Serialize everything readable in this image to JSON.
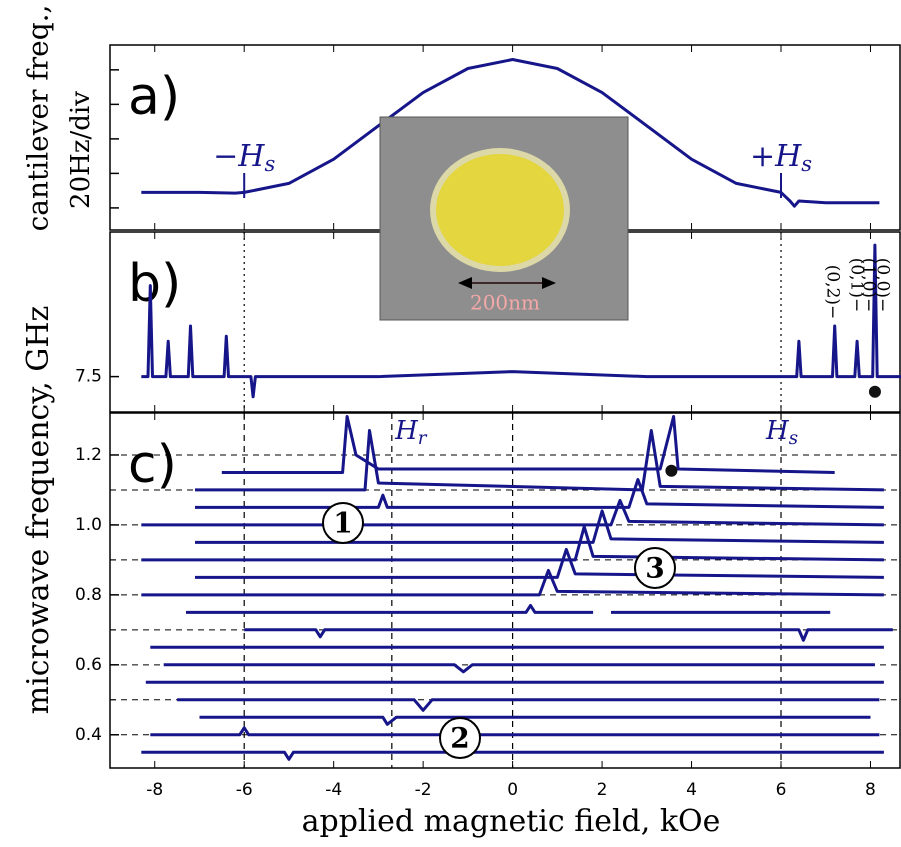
{
  "chart_data": [
    {
      "type": "line",
      "panel_label": "a)",
      "ylabel": [
        "cantilever freq.,",
        "20Hz/div"
      ],
      "xlim": [
        -9,
        8.66
      ],
      "ylim": [
        -0.64,
        4.72
      ],
      "yticks": [
        0,
        1,
        2,
        3,
        4
      ],
      "color": "#16168a",
      "annotations": [
        {
          "text": "−H",
          "sub": "s"
        },
        {
          "text": "+H",
          "sub": "s"
        }
      ],
      "annotation_x": [
        -6,
        6
      ],
      "series": [
        {
          "x": [
            -8.3,
            -7,
            -6.2,
            -6,
            -5,
            -4,
            -3,
            -2,
            -1,
            0,
            1,
            2,
            3,
            4,
            5,
            6,
            6.2,
            6.3,
            6.4,
            7,
            8.2
          ],
          "values": [
            0.45,
            0.45,
            0.43,
            0.45,
            0.71,
            1.41,
            2.38,
            3.34,
            4.04,
            4.3,
            4.04,
            3.34,
            2.38,
            1.41,
            0.71,
            0.45,
            0.2,
            0.05,
            0.2,
            0.15,
            0.15
          ]
        }
      ],
      "inset_label": "200nm"
    },
    {
      "type": "line",
      "panel_label": "b)",
      "xlim": [
        -9,
        8.66
      ],
      "ylim": [
        7.325,
        8.215
      ],
      "yticks": [
        7.5
      ],
      "color": "#16168a",
      "vlines": [
        -6,
        6
      ],
      "mode_labels": [
        "(0,0)−",
        "(1,0)−",
        "(0,1)−",
        "(0,2)−"
      ],
      "series": [
        {
          "x": [
            -8.3,
            -8.15,
            -8.1,
            -8.05,
            -7.75,
            -7.7,
            -7.65,
            -7.25,
            -7.2,
            -7.15,
            -6.45,
            -6.4,
            -6.35,
            -5.85,
            -5.8,
            -5.75,
            -3,
            0,
            3,
            6.35,
            6.4,
            6.45,
            7.15,
            7.2,
            7.25,
            7.65,
            7.7,
            7.75,
            8.05,
            8.1,
            8.15,
            8.7
          ],
          "values": [
            7.5,
            7.5,
            7.95,
            7.5,
            7.5,
            7.675,
            7.5,
            7.5,
            7.75,
            7.5,
            7.5,
            7.7,
            7.5,
            7.5,
            7.4,
            7.5,
            7.5,
            7.525,
            7.5,
            7.5,
            7.675,
            7.5,
            7.5,
            7.75,
            7.5,
            7.5,
            7.675,
            7.5,
            7.5,
            8.15,
            7.5,
            7.5
          ]
        }
      ],
      "markers": {
        "x": [
          8.1
        ],
        "values": [
          7.425
        ]
      }
    },
    {
      "type": "line",
      "panel_label": "c)",
      "ylabel": "microwave frequency, GHz",
      "xlabel": "applied magnetic field, kOe",
      "xlim": [
        -9,
        8.66
      ],
      "ylim": [
        0.305,
        1.32
      ],
      "color": "#16168a",
      "xticks": [
        -8,
        -6,
        -4,
        -2,
        0,
        2,
        4,
        6,
        8
      ],
      "yticks": [
        0.4,
        0.6,
        0.8,
        {
          "value": 1,
          "label": "1.0"
        },
        1.2
      ],
      "yminor": [
        0.5,
        0.7,
        0.9,
        1.1
      ],
      "vlines": [
        -6,
        -2.7,
        0,
        6
      ],
      "annotations": [
        {
          "text": "H",
          "sub": "r"
        },
        {
          "text": "H",
          "sub": "s"
        }
      ],
      "annotation_x": [
        -2.5,
        5.8
      ],
      "circled": [
        "1",
        "2",
        "3"
      ],
      "series": [
        {
          "x": [
            -8.3,
            -5.1,
            -5,
            -4.9,
            8.3
          ],
          "values": [
            0.35,
            0.35,
            0.33,
            0.35,
            0.35
          ]
        },
        {
          "x": [
            -8.1,
            -6.1,
            -6,
            -5.9,
            8.2
          ],
          "values": [
            0.4,
            0.4,
            0.42,
            0.4,
            0.4
          ]
        },
        {
          "x": [
            -7.0,
            -2.9,
            -2.8,
            -2.6,
            8.0
          ],
          "values": [
            0.45,
            0.45,
            0.43,
            0.45,
            0.45
          ]
        },
        {
          "x": [
            -7.5,
            -2.2,
            -2.0,
            -1.8,
            8.2
          ],
          "values": [
            0.5,
            0.5,
            0.47,
            0.5,
            0.5
          ]
        },
        {
          "x": [
            -8.2,
            8.3
          ],
          "values": [
            0.55,
            0.55
          ]
        },
        {
          "x": [
            -7.8,
            -1.3,
            -1.1,
            -0.9,
            8.1
          ],
          "values": [
            0.6,
            0.6,
            0.58,
            0.6,
            0.6
          ]
        },
        {
          "x": [
            -8.1,
            8.3
          ],
          "values": [
            0.65,
            0.65
          ]
        },
        {
          "x": [
            -6.0,
            -4.4,
            -4.3,
            -4.2,
            6.4,
            6.5,
            6.6,
            8.5
          ],
          "values": [
            0.7,
            0.7,
            0.68,
            0.7,
            0.7,
            0.67,
            0.7,
            0.7
          ]
        },
        {
          "x": [
            -7.3,
            0.3,
            0.4,
            0.5,
            1.8,
            2.0,
            2.2,
            7.1
          ],
          "values": [
            0.75,
            0.75,
            0.77,
            0.75,
            0.75,
            null,
            0.75,
            0.75
          ]
        },
        {
          "x": [
            -8.3,
            0.6,
            0.8,
            1.0,
            8.3
          ],
          "values": [
            0.8,
            0.8,
            0.87,
            0.81,
            0.8
          ]
        },
        {
          "x": [
            -7.1,
            1.0,
            1.2,
            1.4,
            8.3
          ],
          "values": [
            0.85,
            0.85,
            0.93,
            0.86,
            0.85
          ]
        },
        {
          "x": [
            -8.3,
            1.4,
            1.6,
            1.8,
            8.3
          ],
          "values": [
            0.9,
            0.9,
            0.995,
            0.91,
            0.9
          ]
        },
        {
          "x": [
            -7.1,
            1.8,
            2.0,
            2.2,
            8.3
          ],
          "values": [
            0.95,
            0.95,
            1.04,
            0.96,
            0.95
          ]
        },
        {
          "x": [
            -8.3,
            2.2,
            2.4,
            2.6,
            8.3
          ],
          "values": [
            1.0,
            1.0,
            1.07,
            1.01,
            1.0
          ]
        },
        {
          "x": [
            -7.1,
            -3.0,
            -2.9,
            -2.8,
            2.6,
            2.8,
            3.0,
            8.3
          ],
          "values": [
            1.05,
            1.05,
            1.085,
            1.05,
            1.05,
            1.13,
            1.06,
            1.05
          ]
        },
        {
          "x": [
            -7.1,
            -3.3,
            -3.2,
            -3.0,
            2.9,
            3.1,
            3.3,
            8.3
          ],
          "values": [
            1.1,
            1.1,
            1.27,
            1.12,
            1.1,
            1.27,
            1.11,
            1.1
          ]
        },
        {
          "x": [
            -6.5,
            -3.8,
            -3.7,
            -3.5,
            -3.0,
            3.3,
            3.6,
            3.7,
            7.2
          ],
          "values": [
            1.15,
            1.15,
            1.31,
            1.2,
            1.16,
            1.16,
            1.31,
            1.16,
            1.15
          ]
        }
      ],
      "markers": {
        "x": [
          3.55
        ],
        "values": [
          1.155
        ]
      }
    }
  ]
}
